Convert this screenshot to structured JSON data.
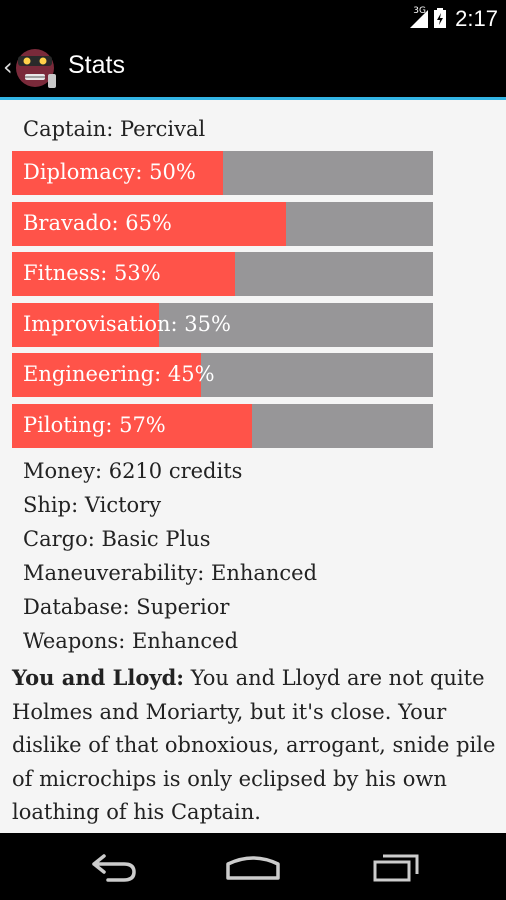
{
  "status_bar": {
    "time": "2:17",
    "network": "3G"
  },
  "action_bar": {
    "title": "Stats"
  },
  "captain": "Captain: Percival",
  "stats": [
    {
      "label": "Diplomacy: 50%",
      "value": 50
    },
    {
      "label": "Bravado: 65%",
      "value": 65
    },
    {
      "label": "Fitness: 53%",
      "value": 53
    },
    {
      "label": "Improvisation: 35%",
      "value": 35
    },
    {
      "label": "Engineering: 45%",
      "value": 45
    },
    {
      "label": "Piloting: 57%",
      "value": 57
    }
  ],
  "info": [
    "Money: 6210 credits",
    "Ship: Victory",
    "Cargo: Basic Plus",
    "Maneuverability: Enhanced",
    "Database: Superior",
    "Weapons: Enhanced"
  ],
  "relationship": {
    "heading": "You and Lloyd:",
    "text": " You and Lloyd are not quite Holmes and Moriarty, but it's close. Your dislike of that obnoxious, arrogant, snide pile of microchips is only eclipsed by his own loathing of his Captain."
  },
  "colors": {
    "accent": "#33b5e5",
    "bar_fill": "#ff5349",
    "bar_track": "#979698"
  },
  "icons": {
    "up": "chevron-left-icon",
    "app": "robot-avatar-icon",
    "signal": "signal-icon",
    "battery": "battery-icon",
    "back": "back-icon",
    "home": "home-icon",
    "recents": "recents-icon"
  }
}
